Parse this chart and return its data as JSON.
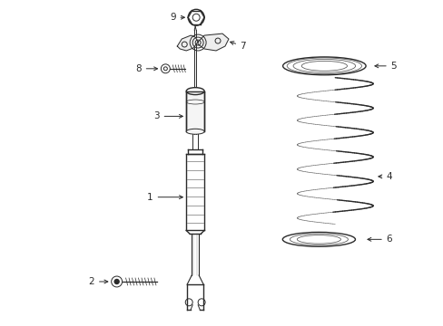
{
  "background_color": "#ffffff",
  "line_color": "#2a2a2a",
  "fig_width": 4.89,
  "fig_height": 3.6,
  "dpi": 100,
  "label_fs": 7.5
}
